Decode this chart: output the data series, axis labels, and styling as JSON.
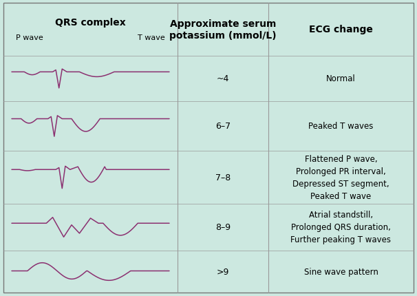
{
  "bg_color": "#cce8e0",
  "line_color": "#8b3070",
  "divider_color": "#999999",
  "title_col1": "QRS complex",
  "title_col2": "Approximate serum\npotassium (mmol/L)",
  "title_col3": "ECG change",
  "subtitle_p": "P wave",
  "subtitle_t": "T wave",
  "rows": [
    {
      "k": "~4",
      "ecg": "Normal"
    },
    {
      "k": "6–7",
      "ecg": "Peaked T waves"
    },
    {
      "k": "7–8",
      "ecg": "Flattened P wave,\nProlonged PR interval,\nDepressed ST segment,\nPeaked T wave"
    },
    {
      "k": "8–9",
      "ecg": "Atrial standstill,\nProlonged QRS duration,\nFurther peaking T waves"
    },
    {
      "k": ">9",
      "ecg": "Sine wave pattern"
    }
  ],
  "title_fontsize": 10,
  "label_fontsize": 9,
  "ecg_fontsize": 8.5,
  "header_fontsize": 8
}
